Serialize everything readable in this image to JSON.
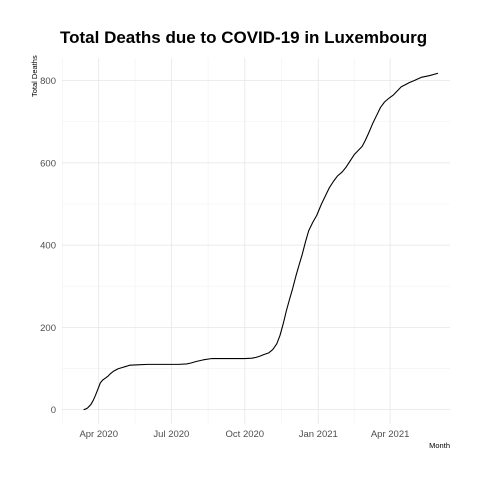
{
  "chart_data": {
    "type": "line",
    "title": "Total Deaths due to COVID-19 in Luxembourg",
    "xlabel": "Month",
    "ylabel": "Total Deaths",
    "x_tick_labels": [
      "Apr 2020",
      "Jul 2020",
      "Oct 2020",
      "Jan 2021",
      "Apr 2021"
    ],
    "x_ticks": [
      "2020-04-01",
      "2020-07-01",
      "2020-10-01",
      "2021-01-01",
      "2021-04-01"
    ],
    "y_ticks": [
      0,
      200,
      400,
      600,
      800
    ],
    "xlim": [
      "2020-02-15",
      "2021-06-15"
    ],
    "ylim": [
      -35,
      855
    ],
    "grid": true,
    "legend": "none",
    "colors": {
      "line": "#000000",
      "grid": "#e6e6e6"
    },
    "series": [
      {
        "x": [
          "2020-03-13",
          "2020-03-15",
          "2020-03-18",
          "2020-03-20",
          "2020-03-22",
          "2020-03-25",
          "2020-03-28",
          "2020-03-31",
          "2020-04-03",
          "2020-04-06",
          "2020-04-09",
          "2020-04-13",
          "2020-04-16",
          "2020-04-20",
          "2020-04-25",
          "2020-04-30",
          "2020-05-05",
          "2020-05-10",
          "2020-05-20",
          "2020-06-01",
          "2020-06-15",
          "2020-06-30",
          "2020-07-10",
          "2020-07-20",
          "2020-07-25",
          "2020-08-01",
          "2020-08-10",
          "2020-08-20",
          "2020-09-01",
          "2020-09-20",
          "2020-10-01",
          "2020-10-10",
          "2020-10-15",
          "2020-10-20",
          "2020-10-25",
          "2020-10-31",
          "2020-11-05",
          "2020-11-10",
          "2020-11-14",
          "2020-11-18",
          "2020-11-22",
          "2020-11-26",
          "2020-11-30",
          "2020-12-04",
          "2020-12-08",
          "2020-12-12",
          "2020-12-16",
          "2020-12-20",
          "2020-12-25",
          "2020-12-30",
          "2021-01-05",
          "2021-01-10",
          "2021-01-15",
          "2021-01-20",
          "2021-01-25",
          "2021-01-31",
          "2021-02-05",
          "2021-02-10",
          "2021-02-15",
          "2021-02-20",
          "2021-02-25",
          "2021-03-01",
          "2021-03-05",
          "2021-03-10",
          "2021-03-15",
          "2021-03-20",
          "2021-03-25",
          "2021-03-31",
          "2021-04-05",
          "2021-04-10",
          "2021-04-15",
          "2021-04-20",
          "2021-04-25",
          "2021-05-01",
          "2021-05-10",
          "2021-05-20",
          "2021-05-31"
        ],
        "y": [
          0,
          1,
          4,
          8,
          12,
          22,
          35,
          50,
          65,
          72,
          76,
          82,
          88,
          94,
          99,
          102,
          105,
          108,
          109,
          110,
          110,
          110,
          110,
          111,
          113,
          117,
          121,
          124,
          124,
          124,
          124,
          125,
          127,
          130,
          134,
          138,
          146,
          160,
          180,
          208,
          240,
          268,
          295,
          325,
          352,
          378,
          408,
          435,
          455,
          472,
          500,
          520,
          540,
          555,
          568,
          578,
          590,
          605,
          620,
          630,
          640,
          655,
          672,
          695,
          715,
          735,
          748,
          758,
          765,
          775,
          785,
          790,
          795,
          800,
          808,
          812,
          818
        ]
      }
    ]
  }
}
